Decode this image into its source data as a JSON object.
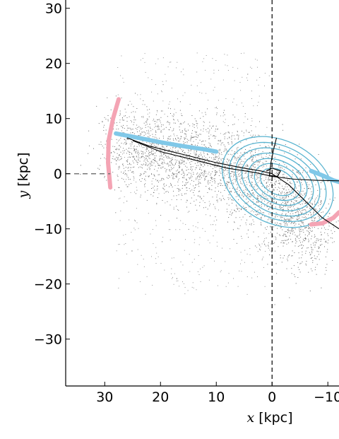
{
  "chart_data": {
    "type": "scatter",
    "xlabel_var": "x",
    "xlabel_unit": "[kpc]",
    "ylabel_var": "y",
    "ylabel_unit": "[kpc]",
    "xlim": [
      37,
      -12
    ],
    "ylim": [
      -38.5,
      31.5
    ],
    "x_ticks": [
      30,
      20,
      10,
      0,
      -10
    ],
    "y_ticks": [
      30,
      20,
      10,
      0,
      -10,
      -20,
      -30
    ],
    "x_tick_labels": [
      "30",
      "20",
      "10",
      "0",
      "−10"
    ],
    "y_tick_labels": [
      "30",
      "20",
      "10",
      "0",
      "−10",
      "−20",
      "−30"
    ],
    "reference_lines": {
      "vertical_x": 0,
      "horizontal_y": 0,
      "horizontal_x_range": [
        37,
        29
      ]
    },
    "particle_cloud": {
      "color": "#6e6e6e",
      "centers": [
        [
          25,
          4.5
        ],
        [
          20,
          3.5
        ],
        [
          14,
          2.5
        ],
        [
          8,
          1.5
        ],
        [
          2,
          -2
        ],
        [
          -3,
          -6
        ],
        [
          -6,
          -10
        ]
      ],
      "spread": [
        4.5,
        5
      ],
      "outliers_range_x": [
        0,
        28
      ],
      "outliers_range_y": [
        -22,
        22
      ]
    },
    "pink_arcs": {
      "color": "#f4a4b4",
      "left_arc": [
        [
          29,
          -2.5
        ],
        [
          29.4,
          2
        ],
        [
          29.3,
          6
        ],
        [
          28.5,
          10
        ],
        [
          27.5,
          13.5
        ]
      ],
      "right_arc": [
        [
          -7,
          -9.2
        ],
        [
          -9,
          -9
        ],
        [
          -11,
          -8
        ],
        [
          -12,
          -7
        ]
      ]
    },
    "blue_tracks": {
      "color": "#80c8e8",
      "left_track": [
        [
          28,
          7.3
        ],
        [
          24,
          6.5
        ],
        [
          20,
          5.7
        ],
        [
          16,
          5
        ],
        [
          12,
          4.4
        ],
        [
          10,
          4
        ]
      ],
      "right_track": [
        [
          -7,
          0.5
        ],
        [
          -9,
          -0.3
        ],
        [
          -11,
          -1.2
        ],
        [
          -12,
          -1.5
        ]
      ]
    },
    "black_orbits": {
      "color": "#000000",
      "paths": [
        [
          [
            26,
            6.5
          ],
          [
            22,
            5
          ],
          [
            16,
            3.5
          ],
          [
            10,
            2
          ],
          [
            5,
            1
          ],
          [
            2,
            0.5
          ],
          [
            0,
            0
          ],
          [
            -3,
            -2
          ],
          [
            -6,
            -5
          ],
          [
            -9,
            -8
          ],
          [
            -12,
            -10
          ]
        ],
        [
          [
            25,
            6
          ],
          [
            20,
            4
          ],
          [
            14,
            2.5
          ],
          [
            8,
            1
          ],
          [
            3,
            0.2
          ],
          [
            0,
            -0.5
          ],
          [
            -4,
            -1
          ],
          [
            -8,
            -1.2
          ],
          [
            -12,
            -1.3
          ]
        ],
        [
          [
            0.5,
            -0.5
          ],
          [
            0.2,
            2
          ],
          [
            -0.3,
            4.5
          ],
          [
            -0.8,
            6.5
          ]
        ],
        [
          [
            1,
            0.5
          ],
          [
            0,
            1
          ],
          [
            -1.5,
            0.5
          ],
          [
            -1,
            -0.5
          ],
          [
            0.5,
            -0.3
          ]
        ]
      ]
    },
    "contours": {
      "color": "#5ab4d0",
      "center": [
        -1,
        -1.5
      ],
      "angle_deg": 27,
      "radii": [
        [
          10.5,
          7.5
        ],
        [
          9.2,
          6.5
        ],
        [
          8,
          5.6
        ],
        [
          6.8,
          4.7
        ],
        [
          5.6,
          3.8
        ],
        [
          4.4,
          3
        ],
        [
          3.3,
          2.2
        ]
      ]
    }
  }
}
